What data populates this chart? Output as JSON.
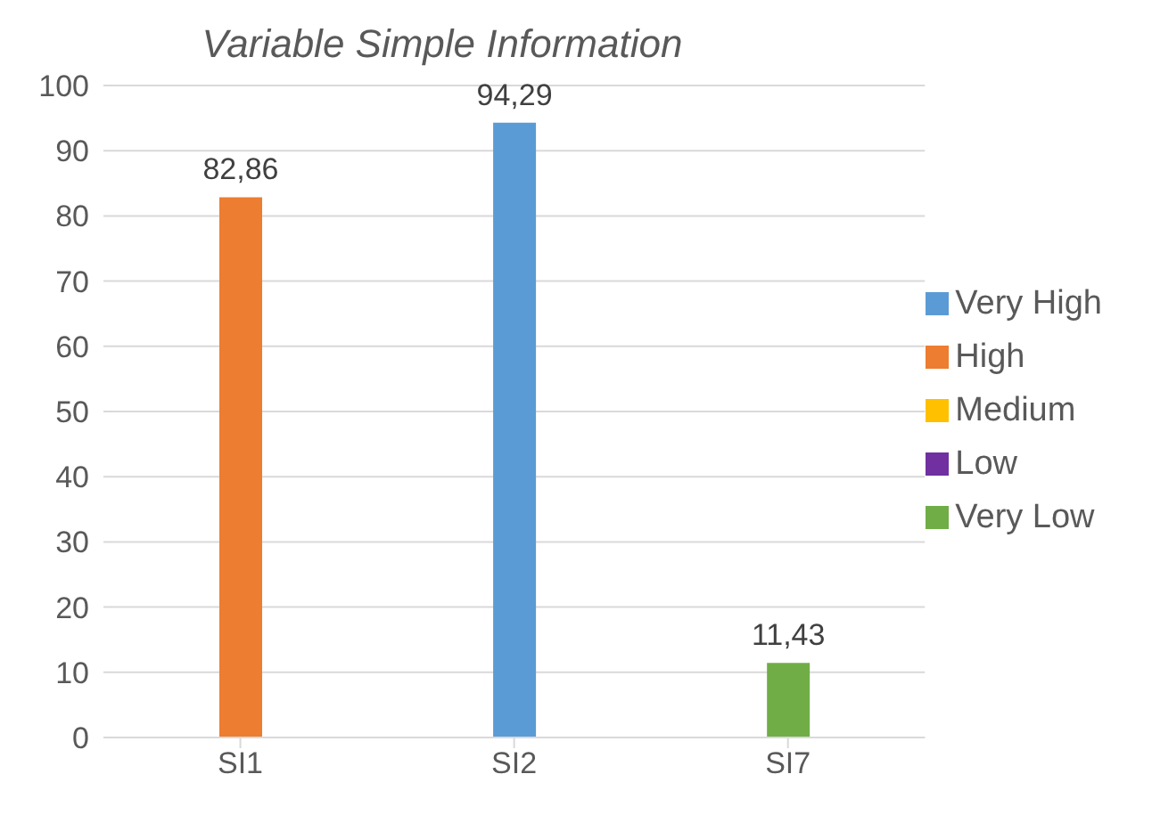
{
  "chart_data": {
    "type": "bar",
    "title": "Variable Simple Information",
    "categories": [
      "SI1",
      "SI2",
      "SI7"
    ],
    "stacked": true,
    "series": [
      {
        "name": "Very High",
        "color": "#5b9bd5",
        "values": [
          null,
          94.29,
          null
        ],
        "value_labels": [
          null,
          "94,29",
          null
        ]
      },
      {
        "name": "High",
        "color": "#ed7d31",
        "values": [
          82.86,
          null,
          null
        ],
        "value_labels": [
          "82,86",
          null,
          null
        ]
      },
      {
        "name": "Medium",
        "color": "#ffc000",
        "values": [
          null,
          null,
          null
        ]
      },
      {
        "name": "Low",
        "color": "#7030a0",
        "values": [
          null,
          null,
          null
        ]
      },
      {
        "name": "Very Low",
        "color": "#70ad47",
        "values": [
          null,
          null,
          11.43
        ],
        "value_labels": [
          null,
          null,
          "11,43"
        ]
      }
    ],
    "ylim": [
      0,
      100
    ],
    "yticks": [
      0,
      10,
      20,
      30,
      40,
      50,
      60,
      70,
      80,
      90,
      100
    ],
    "grid": "y",
    "legend": "right"
  }
}
